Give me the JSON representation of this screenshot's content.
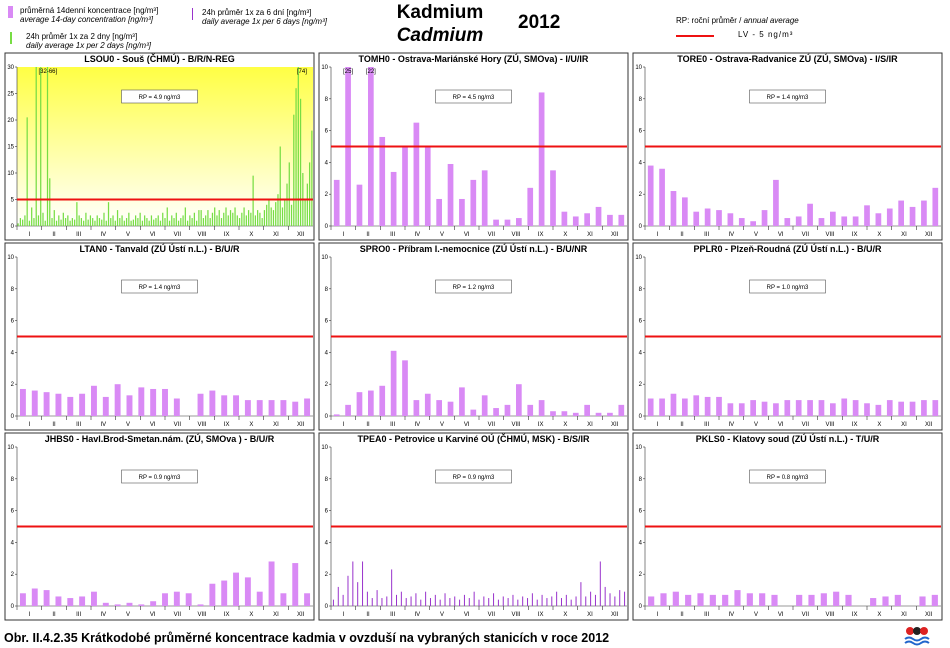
{
  "legend": {
    "bar14_cz": "průměrná 14denní koncentrace [ng/m³]",
    "bar14_en": "average 14-day concentration [ng/m³]",
    "daily2_cz": "24h průměr 1x za 2 dny [ng/m³]",
    "daily2_en": "daily average 1x per 2 days [ng/m³]",
    "daily6_cz": "24h průměr 1x za 6 dní [ng/m³]",
    "daily6_en": "daily average 1x per 6 days [ng/m³]"
  },
  "header": {
    "title_cz": "Kadmium",
    "title_en": "Cadmium",
    "year": "2012",
    "rp_cz": "RP: roční průměr / ",
    "rp_en": "annual average",
    "lv_label": "LV - 5 ng/m³"
  },
  "caption": "Obr. II.4.2.35  Krátkodobé průměrné koncentrace kadmia v ovzduší na vybraných stanicích v roce 2012",
  "colors": {
    "bar14": "#d98af5",
    "daily2": "#77dd44",
    "daily6": "#9933cc",
    "limit": "#ee1111",
    "yellow_bg": "#ffff44"
  },
  "chart_data": [
    {
      "type": "bar",
      "title": "LSOU0 - Souš (ČHMÚ) - B/R/N-REG",
      "series_kind": "daily2",
      "rp_label": "RP = 4.9 ng/m3",
      "ylim": [
        0,
        30
      ],
      "yticks": [
        0,
        5,
        10,
        15,
        20,
        25,
        30
      ],
      "months": [
        "I",
        "II",
        "III",
        "IV",
        "V",
        "VI",
        "VII",
        "VIII",
        "IX",
        "X",
        "XI",
        "XII"
      ],
      "limit": 5,
      "highlight_background": true,
      "annotations": [
        {
          "text": "[32-66]",
          "month_pos": 1.25
        },
        {
          "text": "[74]",
          "month_pos": 11.55
        }
      ],
      "values": [
        0.5,
        1.5,
        1.2,
        2.0,
        20.5,
        1.0,
        3.5,
        1.5,
        30,
        2.0,
        30,
        2.5,
        1.0,
        30,
        9.0,
        1.5,
        3.0,
        1.0,
        2.0,
        1.2,
        2.5,
        1.5,
        2.0,
        1.0,
        1.5,
        1.2,
        4.5,
        2.0,
        1.5,
        1.0,
        2.5,
        1.2,
        2.0,
        1.5,
        1.0,
        2.0,
        1.5,
        1.2,
        2.5,
        1.0,
        4.5,
        1.5,
        2.0,
        1.0,
        3.0,
        1.5,
        2.0,
        1.0,
        1.5,
        2.5,
        1.0,
        1.2,
        2.0,
        1.5,
        2.5,
        1.0,
        2.0,
        1.5,
        1.0,
        2.0,
        1.2,
        1.5,
        2.0,
        1.0,
        2.5,
        1.5,
        3.5,
        1.0,
        2.0,
        1.5,
        2.5,
        1.0,
        1.5,
        2.0,
        3.5,
        1.0,
        2.0,
        1.5,
        2.5,
        1.0,
        3.0,
        3.0,
        1.5,
        2.0,
        3.0,
        1.5,
        2.5,
        3.5,
        2.0,
        3.0,
        1.5,
        2.5,
        3.5,
        2.0,
        3.0,
        2.5,
        3.5,
        2.0,
        1.5,
        2.5,
        3.5,
        2.0,
        3.0,
        2.5,
        9.5,
        2.0,
        3.0,
        2.5,
        1.5,
        3.0,
        4.0,
        5.0,
        3.5,
        3.0,
        4.5,
        6.0,
        15.0,
        3.5,
        5.0,
        8.0,
        12.0,
        4.0,
        21.0,
        26.0,
        30,
        24.0,
        10.0,
        5.0,
        8.0,
        12.0,
        18.0
      ]
    },
    {
      "type": "bar",
      "title": "TOMH0 - Ostrava-Mariánské Hory (ZÚ, SMOva) - I/U/IR",
      "series_kind": "bar14",
      "rp_label": "RP = 4.5 ng/m3",
      "ylim": [
        0,
        10
      ],
      "yticks": [
        0,
        2,
        4,
        6,
        8,
        10
      ],
      "months": [
        "I",
        "II",
        "III",
        "IV",
        "V",
        "VI",
        "VII",
        "VIII",
        "IX",
        "X",
        "XI",
        "XII"
      ],
      "limit": 5,
      "annotations": [
        {
          "text": "[25]",
          "bar_index": 1
        },
        {
          "text": "[22]",
          "bar_index": 3
        }
      ],
      "values": [
        2.9,
        10,
        2.6,
        10,
        5.6,
        3.4,
        5.0,
        6.5,
        5.0,
        1.7,
        3.9,
        1.7,
        2.9,
        3.5,
        0.4,
        0.4,
        0.5,
        2.4,
        8.4,
        3.5,
        0.9,
        0.6,
        0.8,
        1.2,
        0.7,
        0.7
      ]
    },
    {
      "type": "bar",
      "title": "TORE0 - Ostrava-Radvanice ZÚ (ZÚ, SMOva) - I/S/IR",
      "series_kind": "bar14",
      "rp_label": "RP = 1.4 ng/m3",
      "ylim": [
        0,
        10
      ],
      "yticks": [
        0,
        2,
        4,
        6,
        8,
        10
      ],
      "months": [
        "I",
        "II",
        "III",
        "IV",
        "V",
        "VI",
        "VII",
        "VIII",
        "IX",
        "X",
        "XI",
        "XII"
      ],
      "limit": 5,
      "values": [
        3.8,
        3.6,
        2.2,
        1.8,
        0.9,
        1.1,
        1.0,
        0.8,
        0.5,
        0.3,
        1.0,
        2.9,
        0.5,
        0.6,
        1.4,
        0.5,
        0.9,
        0.6,
        0.6,
        1.3,
        0.8,
        1.1,
        1.6,
        1.2,
        1.6,
        2.4
      ]
    },
    {
      "type": "bar",
      "title": "LTAN0 - Tanvald (ZÚ Ústí n.L.) - B/U/R",
      "series_kind": "bar14",
      "rp_label": "RP = 1.4 ng/m3",
      "ylim": [
        0,
        10
      ],
      "yticks": [
        0,
        2,
        4,
        6,
        8,
        10
      ],
      "months": [
        "I",
        "II",
        "III",
        "IV",
        "V",
        "VI",
        "VII",
        "VIII",
        "IX",
        "X",
        "XI",
        "XII"
      ],
      "limit": 5,
      "values": [
        1.7,
        1.6,
        1.5,
        1.4,
        1.2,
        1.4,
        1.9,
        1.2,
        2.0,
        1.3,
        1.8,
        1.7,
        1.7,
        1.1,
        null,
        1.4,
        1.6,
        1.3,
        1.3,
        1.0,
        1.0,
        1.0,
        1.0,
        0.9,
        1.1
      ]
    },
    {
      "type": "bar",
      "title": "SPRO0 - Příbram I.-nemocnice (ZÚ Ústí n.L.) - B/U/NR",
      "series_kind": "bar14",
      "rp_label": "RP = 1.2 ng/m3",
      "ylim": [
        0,
        10
      ],
      "yticks": [
        0,
        2,
        4,
        6,
        8,
        10
      ],
      "months": [
        "I",
        "II",
        "III",
        "IV",
        "V",
        "VI",
        "VII",
        "VIII",
        "IX",
        "X",
        "XI",
        "XII"
      ],
      "limit": 5,
      "values": [
        0.1,
        0.7,
        1.5,
        1.6,
        1.9,
        4.1,
        3.5,
        1.0,
        1.4,
        1.0,
        0.9,
        1.8,
        0.4,
        1.3,
        0.5,
        0.7,
        2.0,
        0.7,
        1.0,
        0.3,
        0.3,
        0.2,
        0.7,
        0.2,
        0.2,
        0.7
      ]
    },
    {
      "type": "bar",
      "title": "PPLR0 - Plzeň-Roudná (ZÚ Ústí n.L.) - B/U/R",
      "series_kind": "bar14",
      "rp_label": "RP = 1.0 ng/m3",
      "ylim": [
        0,
        10
      ],
      "yticks": [
        0,
        2,
        4,
        6,
        8,
        10
      ],
      "months": [
        "I",
        "II",
        "III",
        "IV",
        "V",
        "VI",
        "VII",
        "VIII",
        "IX",
        "X",
        "XI",
        "XII"
      ],
      "limit": 5,
      "values": [
        1.1,
        1.1,
        1.4,
        1.1,
        1.3,
        1.2,
        1.2,
        0.8,
        0.8,
        1.0,
        0.9,
        0.8,
        1.0,
        1.0,
        1.0,
        1.0,
        0.8,
        1.1,
        1.0,
        0.8,
        0.7,
        1.0,
        0.9,
        0.9,
        1.0,
        1.0
      ]
    },
    {
      "type": "bar",
      "title": "JHBS0 - Havl.Brod-Smetan.nám. (ZÚ, SMOva ) - B/U/R",
      "series_kind": "bar14",
      "rp_label": "RP = 0.9 ng/m3",
      "ylim": [
        0,
        10
      ],
      "yticks": [
        0,
        2,
        4,
        6,
        8,
        10
      ],
      "months": [
        "I",
        "II",
        "III",
        "IV",
        "V",
        "VI",
        "VII",
        "VIII",
        "IX",
        "X",
        "XI",
        "XII"
      ],
      "limit": 5,
      "values": [
        0.8,
        1.1,
        1.0,
        0.6,
        0.5,
        0.6,
        0.9,
        0.2,
        0.1,
        0.2,
        0.1,
        0.3,
        0.8,
        0.9,
        0.8,
        0.1,
        1.4,
        1.6,
        2.1,
        1.8,
        0.9,
        2.8,
        0.8,
        2.7,
        0.8
      ]
    },
    {
      "type": "bar",
      "title": "TPEA0 - Petrovice u Karviné OÚ (ČHMÚ, MSK) - B/S/IR",
      "series_kind": "daily6",
      "rp_label": "RP = 0.9 ng/m3",
      "ylim": [
        0,
        10
      ],
      "yticks": [
        0,
        2,
        4,
        6,
        8,
        10
      ],
      "months": [
        "I",
        "II",
        "III",
        "IV",
        "V",
        "VI",
        "VII",
        "VIII",
        "IX",
        "X",
        "XI",
        "XII"
      ],
      "limit": 5,
      "values": [
        0.4,
        1.2,
        0.7,
        1.9,
        2.8,
        1.5,
        2.8,
        0.9,
        0.5,
        1.0,
        0.5,
        0.6,
        2.3,
        0.7,
        0.9,
        0.5,
        0.6,
        0.8,
        0.4,
        0.9,
        0.5,
        0.7,
        0.4,
        0.8,
        0.5,
        0.6,
        0.4,
        0.7,
        0.5,
        0.9,
        0.4,
        0.6,
        0.5,
        0.8,
        0.4,
        0.6,
        0.5,
        0.7,
        0.4,
        0.6,
        0.5,
        0.8,
        0.4,
        0.7,
        0.5,
        0.6,
        0.9,
        0.5,
        0.7,
        0.4,
        0.6,
        1.5,
        0.6,
        0.9,
        0.7,
        2.8,
        1.2,
        0.8,
        0.6,
        1.0,
        0.9
      ]
    },
    {
      "type": "bar",
      "title": "PKLS0 - Klatovy soud (ZÚ Ústí n.L.) - T/U/R",
      "series_kind": "bar14",
      "rp_label": "RP = 0.8 ng/m3",
      "ylim": [
        0,
        10
      ],
      "yticks": [
        0,
        2,
        4,
        6,
        8,
        10
      ],
      "months": [
        "I",
        "II",
        "III",
        "IV",
        "V",
        "VI",
        "VII",
        "VIII",
        "IX",
        "X",
        "XI",
        "XII"
      ],
      "limit": 5,
      "values": [
        0.6,
        0.8,
        0.9,
        0.7,
        0.8,
        0.7,
        0.7,
        1.0,
        0.8,
        0.8,
        0.7,
        null,
        0.7,
        0.7,
        0.8,
        0.9,
        0.7,
        null,
        0.5,
        0.6,
        0.7,
        null,
        0.6,
        0.7
      ]
    }
  ]
}
